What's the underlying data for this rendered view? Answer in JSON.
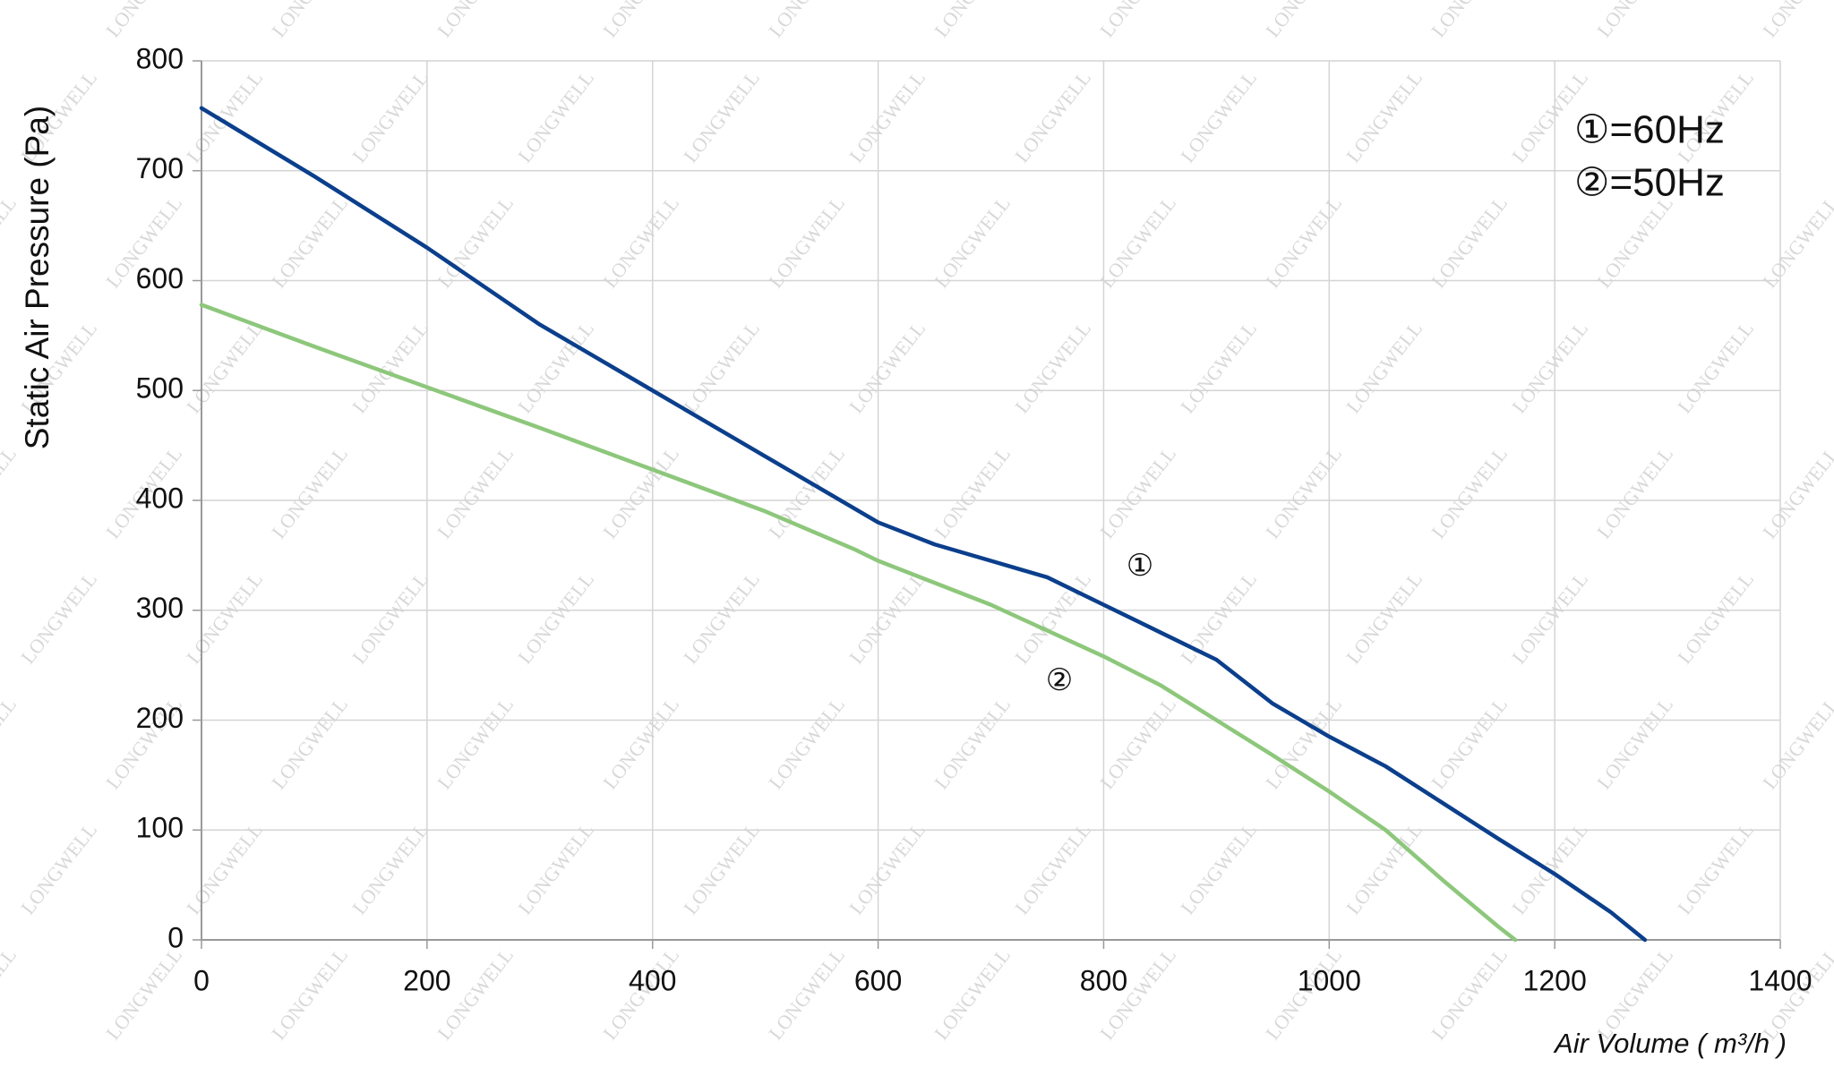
{
  "chart_data": {
    "type": "line",
    "x_label": "Air Volume ( m³/h )",
    "y_label": "Static Air Pressure  (Pa)",
    "legend_text": [
      "①=60Hz",
      "②=50Hz"
    ],
    "watermark": "LONGWELL",
    "xlim": [
      0,
      1400
    ],
    "xticks": [
      0,
      200,
      400,
      600,
      800,
      1000,
      1200,
      1400
    ],
    "ylim": [
      0,
      800
    ],
    "yticks": [
      0,
      100,
      200,
      300,
      400,
      500,
      600,
      700,
      800
    ],
    "grid": true,
    "series": [
      {
        "name": "①",
        "color": "#0b3f8c",
        "x": [
          0,
          100,
          200,
          300,
          400,
          500,
          600,
          650,
          700,
          750,
          800,
          850,
          900,
          950,
          1000,
          1050,
          1100,
          1150,
          1200,
          1250,
          1280
        ],
        "values": [
          757,
          695,
          630,
          560,
          500,
          440,
          380,
          360,
          345,
          330,
          305,
          280,
          255,
          215,
          185,
          158,
          125,
          92,
          60,
          25,
          0
        ]
      },
      {
        "name": "②",
        "color": "#8dc77b",
        "x": [
          0,
          100,
          200,
          300,
          400,
          500,
          580,
          600,
          700,
          800,
          850,
          900,
          950,
          1000,
          1050,
          1100,
          1150,
          1165
        ],
        "values": [
          578,
          540,
          503,
          466,
          428,
          390,
          355,
          345,
          305,
          258,
          232,
          200,
          168,
          135,
          100,
          55,
          12,
          0
        ]
      }
    ]
  }
}
